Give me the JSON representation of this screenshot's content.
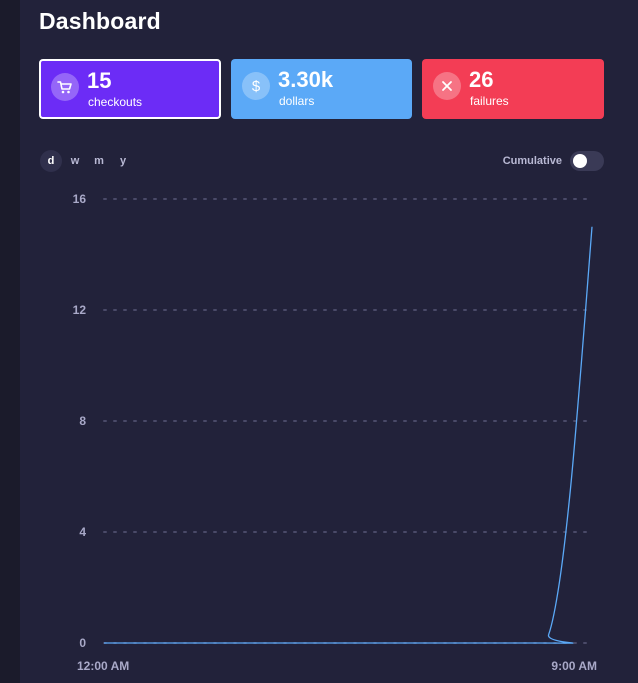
{
  "page": {
    "title": "Dashboard"
  },
  "cards": [
    {
      "key": "checkouts",
      "value": "15",
      "label": "checkouts",
      "icon": "cart-icon",
      "color": "#6c2cf6"
    },
    {
      "key": "dollars",
      "value": "3.30k",
      "label": "dollars",
      "icon": "dollar-icon",
      "color": "#5ba9f7"
    },
    {
      "key": "failures",
      "value": "26",
      "label": "failures",
      "icon": "close-icon",
      "color": "#f33d55"
    }
  ],
  "period_tabs": [
    {
      "label": "d",
      "active": true
    },
    {
      "label": "w",
      "active": false
    },
    {
      "label": "m",
      "active": false
    },
    {
      "label": "y",
      "active": false
    }
  ],
  "cumulative": {
    "label": "Cumulative",
    "on": false
  },
  "chart_data": {
    "type": "line",
    "title": "",
    "xlabel": "",
    "ylabel": "",
    "x_tick_labels": [
      "12:00 AM",
      "9:00 AM"
    ],
    "y_ticks": [
      0,
      4,
      8,
      12,
      16
    ],
    "ylim": [
      0,
      16
    ],
    "xlim": [
      0,
      9
    ],
    "grid": true,
    "line_color": "#5ba9f7",
    "series": [
      {
        "values": [
          {
            "x": 0,
            "y": 0
          },
          {
            "x": 8,
            "y": 0
          },
          {
            "x": 8.2,
            "y": 0.3
          },
          {
            "x": 8.4,
            "y": 2.2
          },
          {
            "x": 8.6,
            "y": 5.5
          },
          {
            "x": 8.8,
            "y": 10
          },
          {
            "x": 9,
            "y": 15
          }
        ]
      }
    ]
  }
}
